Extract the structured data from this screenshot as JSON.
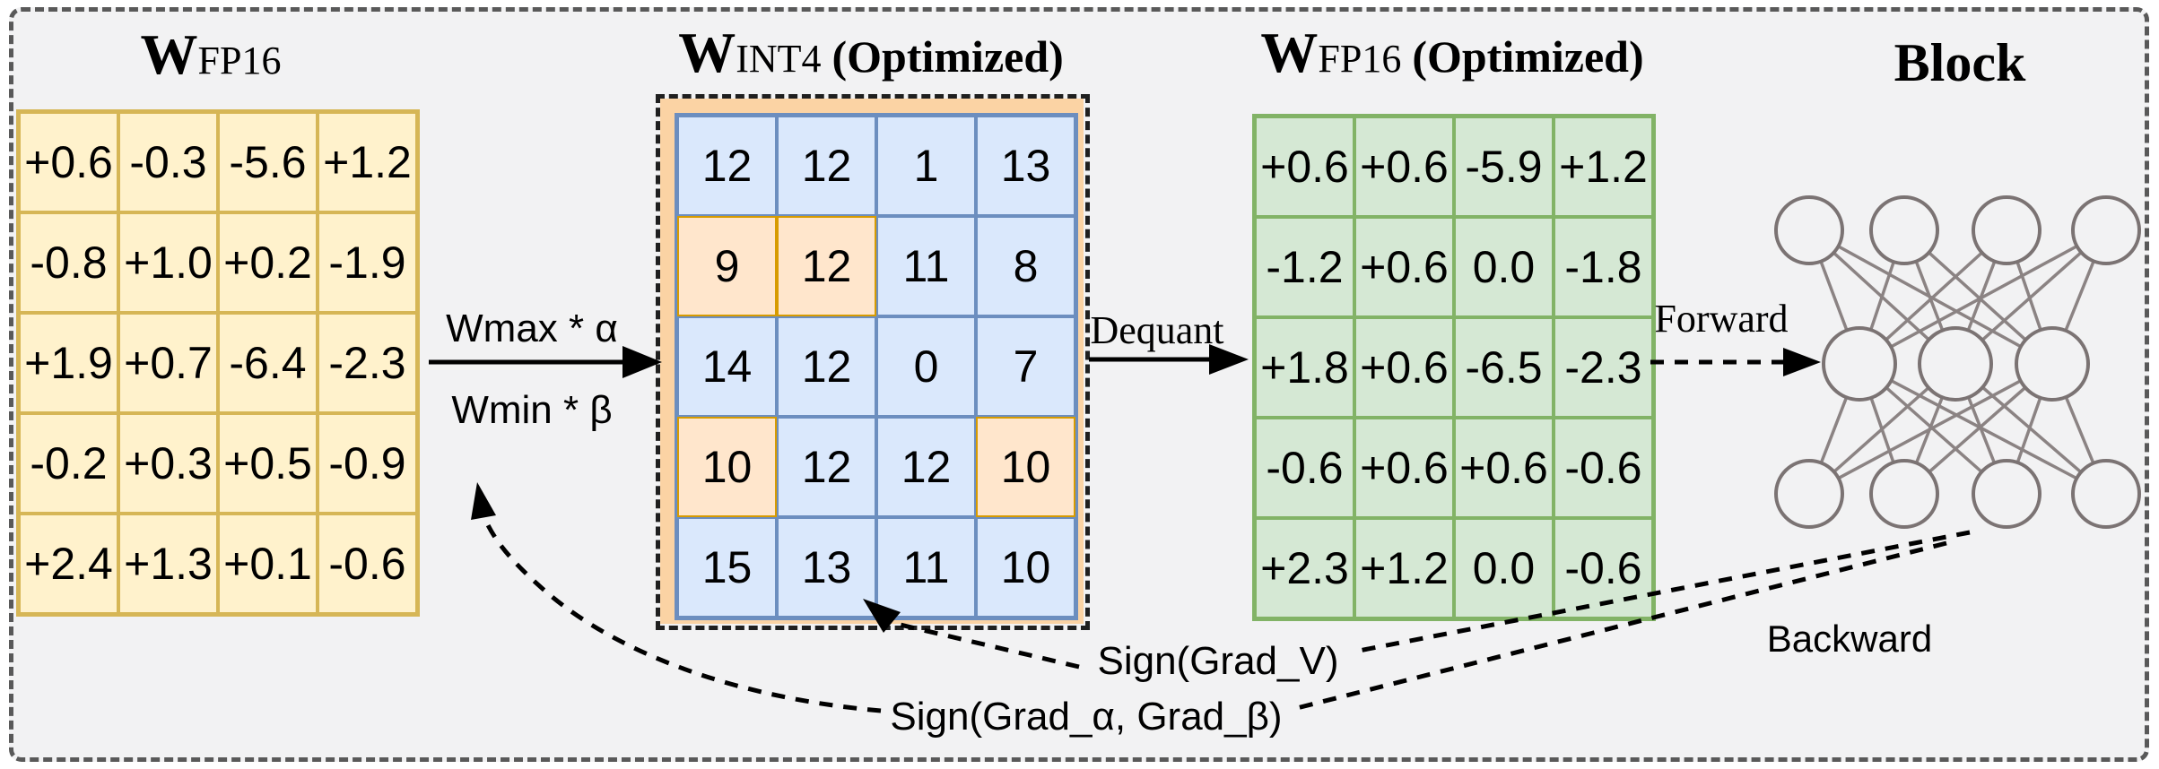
{
  "scene": {
    "background": "#f2f2f3",
    "outer_border_color": "#595959",
    "int4_dashed_border_color": "#1f1f1f",
    "network_gray": "#7b7373"
  },
  "titles": {
    "fp16": {
      "main": "W",
      "sub": "FP16",
      "suffix": ""
    },
    "int4": {
      "main": "W",
      "sub": "INT4",
      "suffix": "(Optimized)"
    },
    "fp16_opt": {
      "main": "W",
      "sub": "FP16",
      "suffix": "(Optimized)"
    },
    "block": "Block"
  },
  "labels": {
    "quant_top": "Wmax * α",
    "quant_bottom": "Wmin * β",
    "dequant": "Dequant",
    "forward": "Forward",
    "backward": "Backward",
    "grad_v": "Sign(Grad_V)",
    "grad_ab": "Sign(Grad_α, Grad_β)"
  },
  "matrices": {
    "fp16": {
      "fill": "#fff2cc",
      "stroke": "#d6b656",
      "rows": [
        [
          "+0.6",
          "-0.3",
          "-5.6",
          "+1.2"
        ],
        [
          "-0.8",
          "+1.0",
          "+0.2",
          "-1.9"
        ],
        [
          "+1.9",
          "+0.7",
          "-6.4",
          "-2.3"
        ],
        [
          "-0.2",
          "+0.3",
          "+0.5",
          "-0.9"
        ],
        [
          "+2.4",
          "+1.3",
          "+0.1",
          "-0.6"
        ]
      ]
    },
    "int4": {
      "cell_fill": "#dae8fc",
      "cell_stroke": "#6c8ebf",
      "highlight_fill": "#ffe6cc",
      "highlight_stroke": "#d79b00",
      "band_fill": "#fbd3a4",
      "rows": [
        [
          "12",
          "12",
          "1",
          "13"
        ],
        [
          "9",
          "12",
          "11",
          "8"
        ],
        [
          "14",
          "12",
          "0",
          "7"
        ],
        [
          "10",
          "12",
          "12",
          "10"
        ],
        [
          "15",
          "13",
          "11",
          "10"
        ]
      ],
      "highlighted_cells": [
        [
          1,
          0
        ],
        [
          1,
          1
        ],
        [
          3,
          0
        ],
        [
          3,
          3
        ]
      ]
    },
    "fp16_opt": {
      "fill": "#d5e8d4",
      "stroke": "#82b366",
      "rows": [
        [
          "+0.6",
          "+0.6",
          "-5.9",
          "+1.2"
        ],
        [
          "-1.2",
          "+0.6",
          "0.0",
          "-1.8"
        ],
        [
          "+1.8",
          "+0.6",
          "-6.5",
          "-2.3"
        ],
        [
          "-0.6",
          "+0.6",
          "+0.6",
          "-0.6"
        ],
        [
          "+2.3",
          "+1.2",
          "0.0",
          "-0.6"
        ]
      ]
    }
  },
  "network": {
    "layer_sizes": [
      4,
      3,
      4
    ]
  }
}
